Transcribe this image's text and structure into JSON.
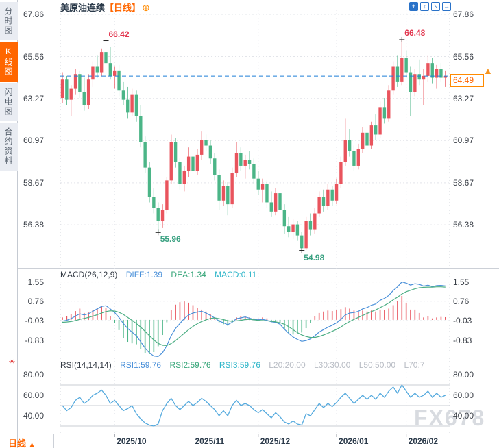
{
  "header": {
    "symbol": "美原油连续",
    "period_tag": "【日线】",
    "add_glyph": "⊕",
    "toolbar": [
      {
        "name": "pan",
        "glyph": "+",
        "style": "solid"
      },
      {
        "name": "scale-y",
        "glyph": "↕",
        "style": "outline"
      },
      {
        "name": "scale-x",
        "glyph": "↘",
        "style": "outline"
      },
      {
        "name": "exit",
        "glyph": "→",
        "style": "outline"
      }
    ]
  },
  "sidebar": {
    "items": [
      {
        "name": "fenshi",
        "label": "分时图",
        "selected": false
      },
      {
        "name": "kline",
        "label": "K线图",
        "selected": true
      },
      {
        "name": "flash",
        "label": "闪电图",
        "selected": false
      },
      {
        "name": "contract",
        "label": "合约资料",
        "selected": false
      }
    ]
  },
  "macd_header": {
    "title": "MACD(26,12,9)",
    "diff": "DIFF:1.39",
    "dea": "DEA:1.34",
    "macd": "MACD:0.11"
  },
  "rsi_header": {
    "title": "RSI(14,14,14)",
    "rsi1": "RSI1:59.76",
    "rsi2": "RSI2:59.76",
    "rsi3": "RSI3:59.76",
    "l20": "L20:20.00",
    "l30": "L30:30.00",
    "l50": "L50:50.00",
    "l70": "L70:7"
  },
  "price_tag": {
    "value": "64.49",
    "arrow_glyph": "▲"
  },
  "footer": {
    "period_label": "日线",
    "arrow_glyph": "▲"
  },
  "watermark": {
    "text": "FX678"
  },
  "sun_glyph": "☀",
  "colors": {
    "up": "#e9545d",
    "down": "#4bb587",
    "accent": "#ff6600",
    "dash_line": "#1e7fd8",
    "diff_line": "#4a90d9",
    "dea_line": "#4cae84",
    "rsi_line": "#55aade",
    "grid": "#e2e4e9",
    "level_line": "#c9ccd3",
    "anno_high": "#e2344d",
    "anno_low": "#3aa181"
  },
  "chart_data": [
    {
      "type": "candlestick",
      "title": "美原油连续【日线】",
      "last_price": 64.49,
      "y_ticks": [
        {
          "label": "67.86",
          "v": 67.86
        },
        {
          "label": "65.56",
          "v": 65.56
        },
        {
          "label": "63.27",
          "v": 63.27
        },
        {
          "label": "60.97",
          "v": 60.97
        },
        {
          "label": "58.67",
          "v": 58.67
        },
        {
          "label": "56.38",
          "v": 56.38
        }
      ],
      "x_ticks": [
        {
          "label": "2025/10",
          "i": 12
        },
        {
          "label": "2025/11",
          "i": 30
        },
        {
          "label": "2025/12",
          "i": 45
        },
        {
          "label": "2026/01",
          "i": 63
        },
        {
          "label": "2026/02",
          "i": 79
        }
      ],
      "annotations": [
        {
          "label": "66.42",
          "i": 10,
          "price": 66.42,
          "kind": "high"
        },
        {
          "label": "66.48",
          "i": 78,
          "price": 66.48,
          "kind": "high"
        },
        {
          "label": "55.96",
          "i": 22,
          "price": 55.96,
          "kind": "low"
        },
        {
          "label": "54.98",
          "i": 55,
          "price": 54.98,
          "kind": "low"
        }
      ],
      "ohlc": [
        [
          63.3,
          64.7,
          63.0,
          64.3
        ],
        [
          64.3,
          64.5,
          62.9,
          63.2
        ],
        [
          63.2,
          64.0,
          62.3,
          63.8
        ],
        [
          63.8,
          64.9,
          63.5,
          64.6
        ],
        [
          64.6,
          64.8,
          63.3,
          63.6
        ],
        [
          63.6,
          64.4,
          62.6,
          62.9
        ],
        [
          62.9,
          64.6,
          62.7,
          64.3
        ],
        [
          64.3,
          65.3,
          63.9,
          65.0
        ],
        [
          65.0,
          65.6,
          64.4,
          64.7
        ],
        [
          64.7,
          66.0,
          64.5,
          65.8
        ],
        [
          65.8,
          66.42,
          64.9,
          65.2
        ],
        [
          65.2,
          66.1,
          64.3,
          64.5
        ],
        [
          64.5,
          65.0,
          63.8,
          64.8
        ],
        [
          64.8,
          65.1,
          63.4,
          63.7
        ],
        [
          63.7,
          64.2,
          62.9,
          63.2
        ],
        [
          63.2,
          63.9,
          62.2,
          62.5
        ],
        [
          62.5,
          63.8,
          62.3,
          63.5
        ],
        [
          63.5,
          63.7,
          62.0,
          62.3
        ],
        [
          62.3,
          62.9,
          60.6,
          60.9
        ],
        [
          60.9,
          61.2,
          59.2,
          59.5
        ],
        [
          59.5,
          59.8,
          57.6,
          57.9
        ],
        [
          57.9,
          58.4,
          57.0,
          57.3
        ],
        [
          57.3,
          57.6,
          55.96,
          56.6
        ],
        [
          56.6,
          57.5,
          56.2,
          57.2
        ],
        [
          57.2,
          59.0,
          57.0,
          58.8
        ],
        [
          58.8,
          61.3,
          58.6,
          60.9
        ],
        [
          60.9,
          61.1,
          59.5,
          59.8
        ],
        [
          59.8,
          60.0,
          58.3,
          58.6
        ],
        [
          58.6,
          59.6,
          58.2,
          59.3
        ],
        [
          59.3,
          60.6,
          59.0,
          60.1
        ],
        [
          60.1,
          60.4,
          59.0,
          59.3
        ],
        [
          59.3,
          60.5,
          59.1,
          60.2
        ],
        [
          60.2,
          61.5,
          59.9,
          61.0
        ],
        [
          61.0,
          61.3,
          60.4,
          60.7
        ],
        [
          60.7,
          61.0,
          59.7,
          60.0
        ],
        [
          60.0,
          60.3,
          58.8,
          59.1
        ],
        [
          59.1,
          59.4,
          57.2,
          57.7
        ],
        [
          57.7,
          58.8,
          57.4,
          58.5
        ],
        [
          58.5,
          58.7,
          56.9,
          57.5
        ],
        [
          57.5,
          59.5,
          57.3,
          59.2
        ],
        [
          59.2,
          60.9,
          59.0,
          60.3
        ],
        [
          60.3,
          60.6,
          59.3,
          59.6
        ],
        [
          59.6,
          60.2,
          58.9,
          59.9
        ],
        [
          59.9,
          60.4,
          59.4,
          59.7
        ],
        [
          59.7,
          60.0,
          58.6,
          58.9
        ],
        [
          58.9,
          59.3,
          58.0,
          58.3
        ],
        [
          58.3,
          58.9,
          57.6,
          58.6
        ],
        [
          58.6,
          58.8,
          57.3,
          57.6
        ],
        [
          57.6,
          58.2,
          56.8,
          57.1
        ],
        [
          57.1,
          58.4,
          56.9,
          58.1
        ],
        [
          58.1,
          58.3,
          56.9,
          57.2
        ],
        [
          57.2,
          57.5,
          55.9,
          56.3
        ],
        [
          56.3,
          56.8,
          55.7,
          56.0
        ],
        [
          56.0,
          56.7,
          55.6,
          56.4
        ],
        [
          56.4,
          56.6,
          55.5,
          55.8
        ],
        [
          55.8,
          56.0,
          54.98,
          55.1
        ],
        [
          55.1,
          56.8,
          55.0,
          56.6
        ],
        [
          56.6,
          57.0,
          55.8,
          56.1
        ],
        [
          56.1,
          57.3,
          55.9,
          57.0
        ],
        [
          57.0,
          58.2,
          56.8,
          57.9
        ],
        [
          57.9,
          58.3,
          57.1,
          57.4
        ],
        [
          57.4,
          58.6,
          57.2,
          58.3
        ],
        [
          58.3,
          58.5,
          57.4,
          57.7
        ],
        [
          57.7,
          58.9,
          57.5,
          58.6
        ],
        [
          58.6,
          60.1,
          58.4,
          59.8
        ],
        [
          59.8,
          62.2,
          59.6,
          61.0
        ],
        [
          61.0,
          61.6,
          60.1,
          60.4
        ],
        [
          60.4,
          60.7,
          59.3,
          59.6
        ],
        [
          59.6,
          60.8,
          59.4,
          60.5
        ],
        [
          60.5,
          61.7,
          60.3,
          61.4
        ],
        [
          61.4,
          61.6,
          60.4,
          60.7
        ],
        [
          60.7,
          62.0,
          60.5,
          61.8
        ],
        [
          61.8,
          62.4,
          61.0,
          61.3
        ],
        [
          61.3,
          63.1,
          61.1,
          62.8
        ],
        [
          62.8,
          63.3,
          61.9,
          62.2
        ],
        [
          62.2,
          64.0,
          62.0,
          63.7
        ],
        [
          63.7,
          65.3,
          63.5,
          65.0
        ],
        [
          65.0,
          65.6,
          63.9,
          64.2
        ],
        [
          64.2,
          66.48,
          64.0,
          65.5
        ],
        [
          65.5,
          65.9,
          64.4,
          64.7
        ],
        [
          64.7,
          65.0,
          62.3,
          63.6
        ],
        [
          63.6,
          64.9,
          63.4,
          64.6
        ],
        [
          64.6,
          65.4,
          64.0,
          64.3
        ],
        [
          64.3,
          64.9,
          62.9,
          64.5
        ],
        [
          64.5,
          65.6,
          64.2,
          65.2
        ],
        [
          65.2,
          65.5,
          64.1,
          64.4
        ],
        [
          64.4,
          65.1,
          63.8,
          64.9
        ],
        [
          64.9,
          65.2,
          64.2,
          64.4
        ],
        [
          64.4,
          64.8,
          63.9,
          64.49
        ]
      ]
    },
    {
      "type": "macd",
      "title": "MACD(26,12,9)",
      "values": {
        "diff": 1.39,
        "dea": 1.34,
        "macd": 0.11
      },
      "y_ticks": [
        {
          "label": "1.55",
          "v": 1.55
        },
        {
          "label": "0.76",
          "v": 0.76
        },
        {
          "label": "-0.03",
          "v": -0.03
        },
        {
          "label": "-0.83",
          "v": -0.83
        }
      ],
      "hist": [
        0.1,
        0.14,
        0.24,
        0.36,
        0.46,
        0.28,
        0.3,
        0.4,
        0.48,
        0.55,
        0.48,
        0.16,
        -0.12,
        -0.42,
        -0.74,
        -0.9,
        -0.96,
        -1.0,
        -1.2,
        -1.36,
        -1.4,
        -1.32,
        -1.08,
        -0.62,
        -0.1,
        0.4,
        0.62,
        0.72,
        0.75,
        0.7,
        0.6,
        0.5,
        0.42,
        0.34,
        0.22,
        0.1,
        -0.1,
        -0.18,
        -0.24,
        -0.1,
        0.1,
        0.14,
        0.16,
        0.1,
        0.06,
        0.06,
        0.1,
        0.06,
        -0.06,
        -0.08,
        -0.14,
        -0.4,
        -0.54,
        -0.6,
        -0.56,
        -0.52,
        -0.34,
        -0.12,
        0.14,
        0.28,
        0.34,
        0.38,
        0.36,
        0.4,
        0.44,
        0.52,
        0.46,
        0.38,
        0.34,
        0.38,
        0.34,
        0.38,
        0.34,
        0.42,
        0.4,
        0.46,
        0.6,
        0.76,
        0.98,
        0.7,
        0.42,
        0.42,
        0.28,
        0.1,
        0.16,
        0.06,
        0.1,
        0.12,
        0.11
      ],
      "diff": [
        -0.05,
        -0.02,
        0.05,
        0.15,
        0.25,
        0.2,
        0.25,
        0.35,
        0.45,
        0.55,
        0.58,
        0.45,
        0.3,
        0.1,
        -0.15,
        -0.35,
        -0.5,
        -0.65,
        -0.9,
        -1.15,
        -1.35,
        -1.48,
        -1.5,
        -1.35,
        -1.05,
        -0.65,
        -0.35,
        -0.15,
        0.05,
        0.2,
        0.28,
        0.32,
        0.35,
        0.28,
        0.18,
        0.08,
        -0.05,
        -0.12,
        -0.2,
        -0.1,
        0.05,
        0.08,
        0.12,
        0.07,
        0.02,
        0.0,
        0.02,
        -0.02,
        -0.08,
        -0.1,
        -0.18,
        -0.38,
        -0.55,
        -0.7,
        -0.8,
        -0.88,
        -0.85,
        -0.78,
        -0.65,
        -0.5,
        -0.4,
        -0.3,
        -0.22,
        -0.12,
        0.02,
        0.2,
        0.28,
        0.3,
        0.35,
        0.45,
        0.5,
        0.6,
        0.65,
        0.8,
        0.88,
        1.0,
        1.2,
        1.35,
        1.55,
        1.5,
        1.42,
        1.48,
        1.45,
        1.38,
        1.42,
        1.36,
        1.4,
        1.41,
        1.39
      ],
      "dea": [
        -0.1,
        -0.09,
        -0.07,
        -0.03,
        0.02,
        0.06,
        0.1,
        0.15,
        0.21,
        0.28,
        0.34,
        0.37,
        0.36,
        0.31,
        0.22,
        0.1,
        -0.02,
        -0.15,
        -0.3,
        -0.47,
        -0.65,
        -0.82,
        -0.96,
        -1.04,
        -1.05,
        -0.97,
        -0.85,
        -0.7,
        -0.55,
        -0.4,
        -0.27,
        -0.16,
        -0.07,
        0.0,
        0.06,
        0.08,
        0.05,
        0.01,
        -0.04,
        -0.06,
        -0.04,
        -0.02,
        0.01,
        0.02,
        0.0,
        -0.02,
        -0.03,
        -0.04,
        -0.06,
        -0.08,
        -0.12,
        -0.18,
        -0.28,
        -0.4,
        -0.52,
        -0.62,
        -0.68,
        -0.72,
        -0.72,
        -0.68,
        -0.62,
        -0.55,
        -0.47,
        -0.39,
        -0.29,
        -0.17,
        -0.07,
        0.02,
        0.1,
        0.18,
        0.26,
        0.34,
        0.41,
        0.5,
        0.59,
        0.69,
        0.82,
        0.93,
        1.06,
        1.15,
        1.21,
        1.27,
        1.31,
        1.33,
        1.34,
        1.34,
        1.35,
        1.35,
        1.34
      ]
    },
    {
      "type": "line",
      "title": "RSI(14,14,14)",
      "values": {
        "rsi1": 59.76,
        "rsi2": 59.76,
        "rsi3": 59.76
      },
      "levels": [
        70,
        50,
        30
      ],
      "y_ticks": [
        {
          "label": "80.00",
          "v": 80
        },
        {
          "label": "60.00",
          "v": 60
        },
        {
          "label": "40.00",
          "v": 40
        }
      ],
      "rsi": [
        50,
        45,
        48,
        55,
        58,
        52,
        55,
        60,
        62,
        65,
        60,
        52,
        55,
        50,
        45,
        47,
        50,
        42,
        37,
        33,
        31,
        30,
        32,
        45,
        52,
        57,
        50,
        46,
        50,
        54,
        50,
        53,
        57,
        54,
        50,
        46,
        40,
        45,
        40,
        50,
        55,
        50,
        52,
        50,
        46,
        43,
        46,
        42,
        38,
        43,
        39,
        34,
        32,
        35,
        32,
        31,
        42,
        40,
        46,
        52,
        48,
        52,
        49,
        53,
        58,
        62,
        57,
        52,
        56,
        60,
        56,
        60,
        56,
        62,
        58,
        64,
        68,
        62,
        70,
        64,
        58,
        62,
        58,
        60,
        64,
        58,
        62,
        58,
        60
      ]
    }
  ]
}
